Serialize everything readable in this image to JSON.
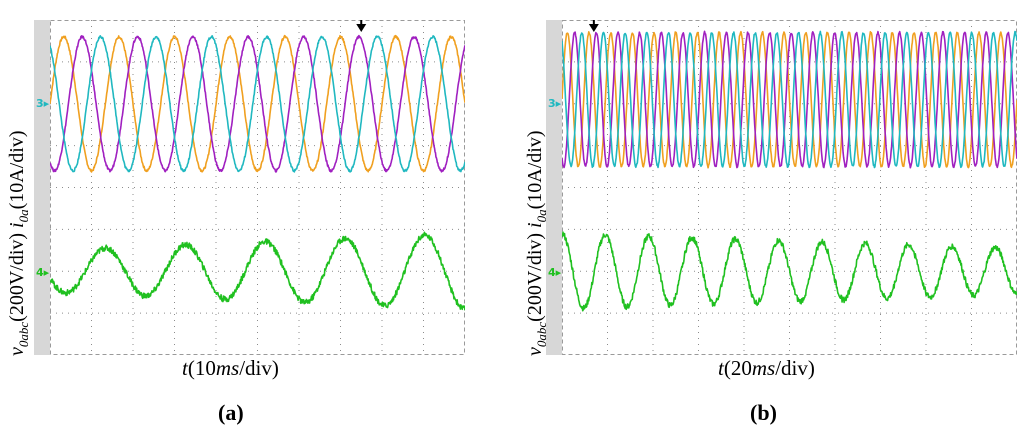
{
  "figures": [
    {
      "id": "a",
      "tag_open": "(",
      "tag_letter": "a",
      "tag_close": ")",
      "xlabel_t": "t",
      "xlabel_open": "(10",
      "xlabel_ms": "ms",
      "xlabel_close": "/div)",
      "ylabel_v": "v",
      "ylabel_v_sub": "0abc",
      "ylabel_v_unit": "(200V/div) ",
      "ylabel_i": "i",
      "ylabel_i_sub": "0a",
      "ylabel_i_unit": "(10A/div)",
      "ch3_marker": "3",
      "ch4_marker": "4"
    },
    {
      "id": "b",
      "tag_open": "(",
      "tag_letter": "b",
      "tag_close": ")",
      "xlabel_t": "t",
      "xlabel_open": "(20",
      "xlabel_ms": "ms",
      "xlabel_close": "/div)",
      "ylabel_v": "v",
      "ylabel_v_sub": "0abc",
      "ylabel_v_unit": "(200V/div) ",
      "ylabel_i": "i",
      "ylabel_i_sub": "0a",
      "ylabel_i_unit": "(10A/div)",
      "ch3_marker": "3",
      "ch4_marker": "4"
    }
  ],
  "colors": {
    "phase_a": "#f0a020",
    "phase_b": "#a020c0",
    "phase_c": "#20b8c0",
    "current": "#20c020",
    "grid": "#8c8c8c",
    "strip": "#d7d7d7"
  },
  "chart_data": [
    {
      "type": "line",
      "panel": "a",
      "x_unit": "div (10 ms/div)",
      "x_range": [
        0,
        10
      ],
      "y_unit": "div",
      "y_range": [
        -4,
        4
      ],
      "grid": true,
      "series": [
        {
          "channel": "voltage phase a",
          "color": "orange",
          "amplitude_div": 1.6,
          "offset_div": 2.0,
          "cycles": 7.5,
          "phase_deg": 0
        },
        {
          "channel": "voltage phase b",
          "color": "magenta",
          "amplitude_div": 1.6,
          "offset_div": 2.0,
          "cycles": 7.5,
          "phase_deg": -120
        },
        {
          "channel": "voltage phase c",
          "color": "cyan",
          "amplitude_div": 1.6,
          "offset_div": 2.0,
          "cycles": 7.5,
          "phase_deg": 120
        },
        {
          "channel": "current i0a",
          "color": "green",
          "amplitude_div": 0.5,
          "amplitude_end_div": 0.9,
          "offset_div": -2.0,
          "cycles": 5.2,
          "phase_deg": 200
        }
      ]
    },
    {
      "type": "line",
      "panel": "b",
      "x_unit": "div (20 ms/div)",
      "x_range": [
        0,
        10
      ],
      "y_unit": "div",
      "y_range": [
        -4,
        4
      ],
      "grid": true,
      "series": [
        {
          "channel": "voltage phase a",
          "color": "orange",
          "amplitude_div": 1.6,
          "offset_div": 2.1,
          "cycles": 21,
          "phase_deg": 0
        },
        {
          "channel": "voltage phase b",
          "color": "magenta",
          "amplitude_div": 1.6,
          "offset_div": 2.1,
          "cycles": 21,
          "phase_deg": -120
        },
        {
          "channel": "voltage phase c",
          "color": "cyan",
          "amplitude_div": 1.6,
          "offset_div": 2.1,
          "cycles": 21,
          "phase_deg": 120
        },
        {
          "channel": "current i0a",
          "color": "green",
          "amplitude_div": 0.9,
          "amplitude_end_div": 0.55,
          "offset_div": -2.0,
          "cycles": 10.5,
          "phase_deg": 90
        }
      ]
    }
  ]
}
